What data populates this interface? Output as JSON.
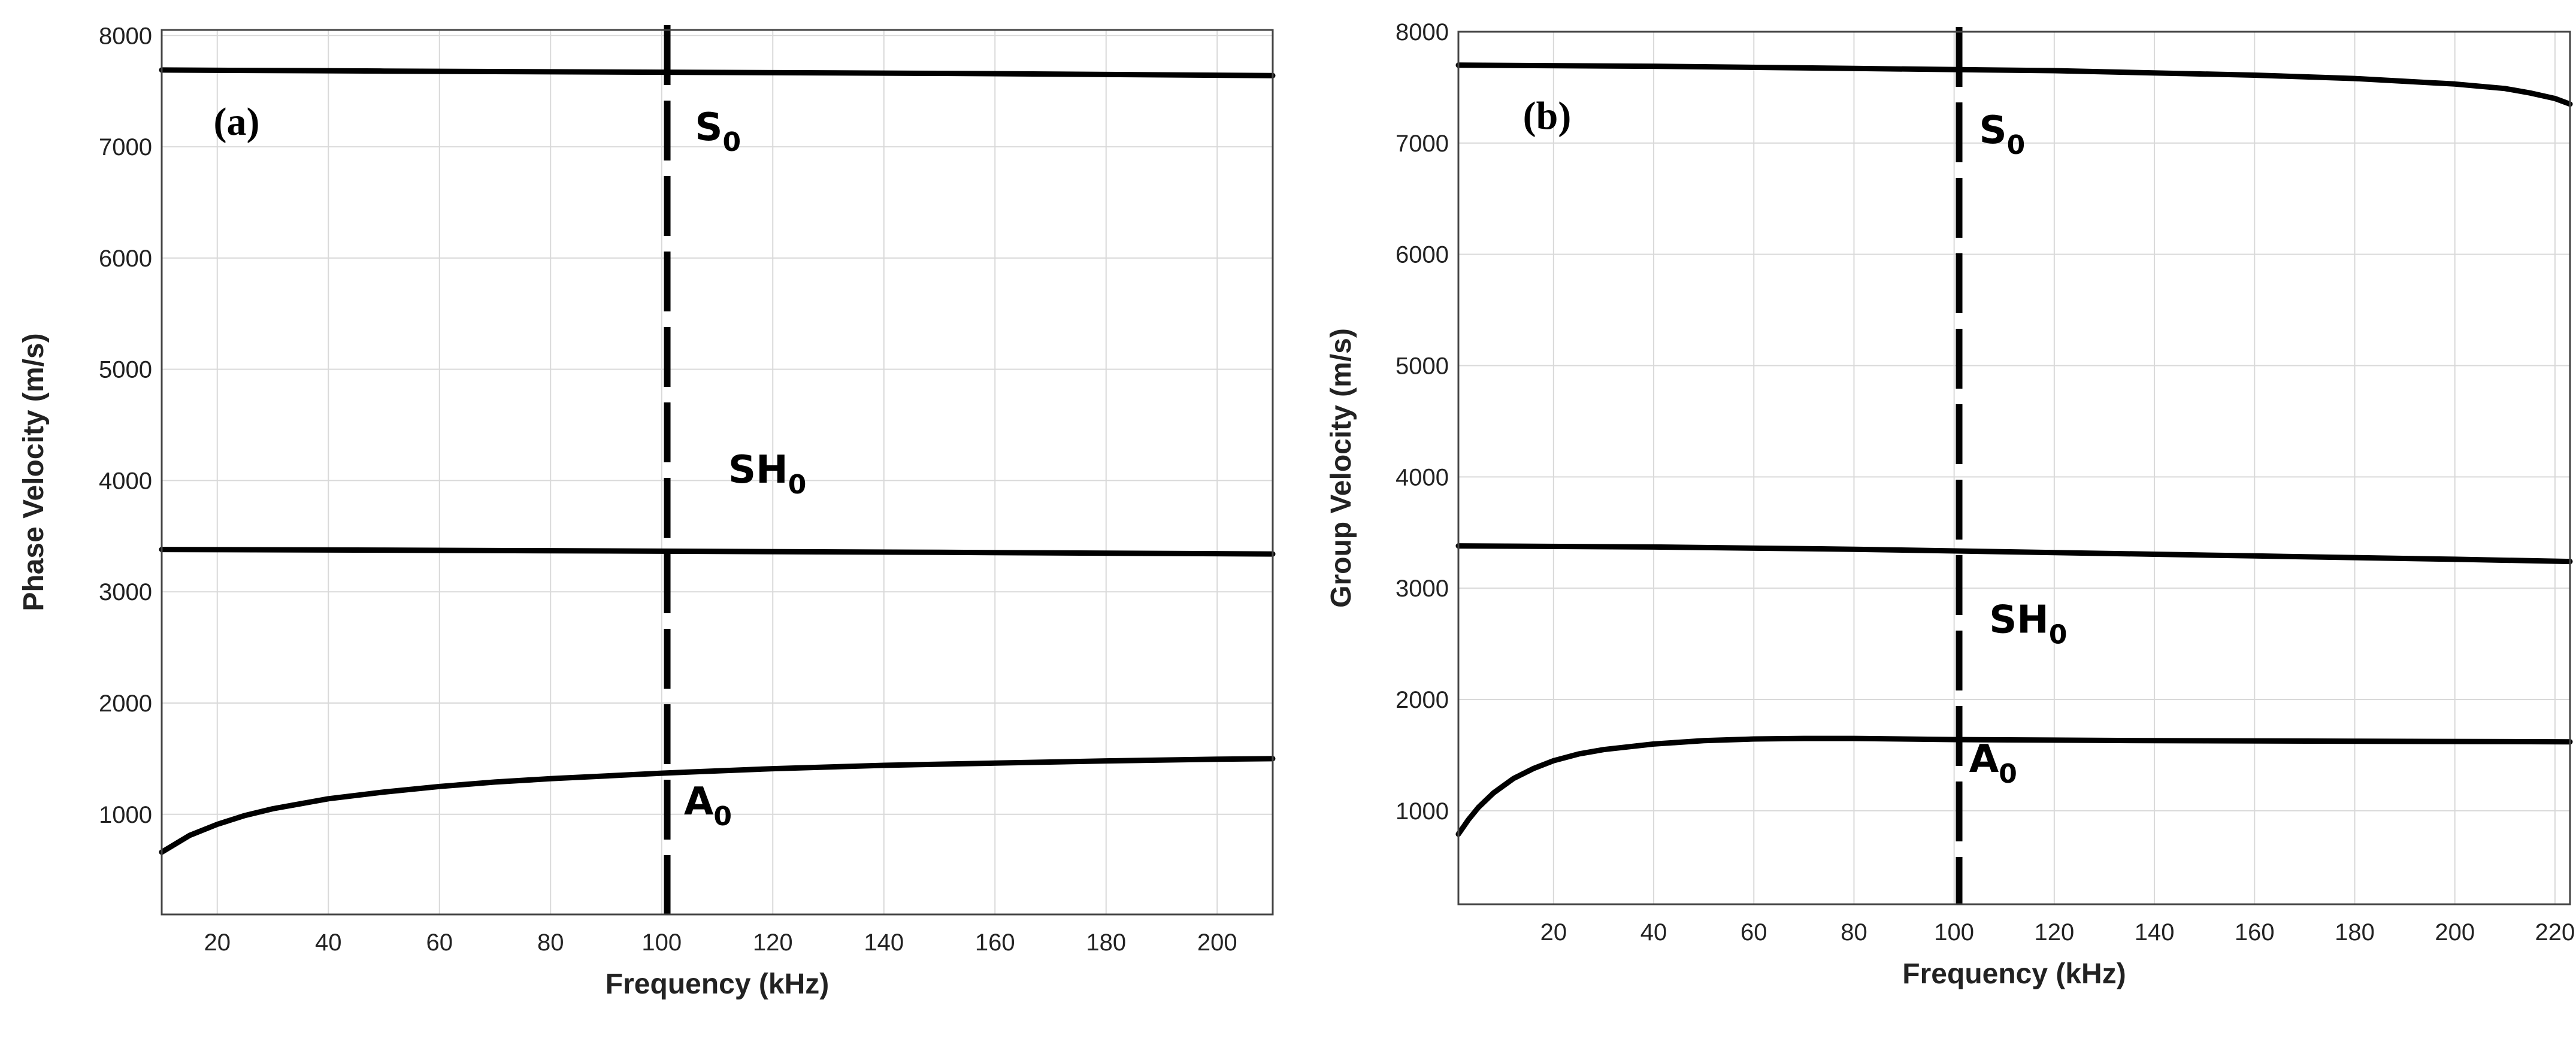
{
  "chart_data": [
    {
      "type": "line",
      "panel": "(a)",
      "xlabel": "Frequency (kHz)",
      "ylabel": "Phase Velocity (m/s)",
      "xlim": [
        10,
        210
      ],
      "ylim": [
        100,
        8050
      ],
      "xticks": [
        20,
        40,
        60,
        80,
        100,
        120,
        140,
        160,
        180,
        200
      ],
      "yticks": [
        1000,
        2000,
        3000,
        4000,
        5000,
        6000,
        7000,
        8000
      ],
      "grid": true,
      "series": [
        {
          "name": "S0",
          "x": [
            10,
            50,
            100,
            150,
            210
          ],
          "y": [
            7690,
            7680,
            7670,
            7660,
            7640
          ]
        },
        {
          "name": "SH0",
          "x": [
            10,
            50,
            100,
            150,
            210
          ],
          "y": [
            3380,
            3375,
            3365,
            3355,
            3340
          ]
        },
        {
          "name": "A0",
          "x": [
            10,
            15,
            20,
            25,
            30,
            40,
            50,
            60,
            70,
            80,
            90,
            100,
            120,
            140,
            160,
            180,
            200,
            210
          ],
          "y": [
            660,
            810,
            910,
            990,
            1050,
            1140,
            1200,
            1250,
            1290,
            1320,
            1345,
            1370,
            1410,
            1440,
            1460,
            1480,
            1495,
            1500
          ]
        }
      ],
      "marker": {
        "x": 101,
        "style": "dashed"
      },
      "annotations": [
        {
          "id": "s0",
          "text": "S",
          "sub": "0",
          "x": 106,
          "y": 7060
        },
        {
          "id": "sh0",
          "text": "SH",
          "sub": "0",
          "x": 112,
          "y": 3980
        },
        {
          "id": "a0",
          "text": "A",
          "sub": "0",
          "x": 104,
          "y": 1000
        }
      ]
    },
    {
      "type": "line",
      "panel": "(b)",
      "xlabel": "Frequency (kHz)",
      "ylabel": "Group Velocity (m/s)",
      "xlim": [
        1,
        223
      ],
      "ylim": [
        160,
        8000
      ],
      "xticks": [
        20,
        40,
        60,
        80,
        100,
        120,
        140,
        160,
        180,
        200,
        220
      ],
      "yticks": [
        1000,
        2000,
        3000,
        4000,
        5000,
        6000,
        7000,
        8000
      ],
      "grid": true,
      "series": [
        {
          "name": "S0",
          "x": [
            1,
            40,
            80,
            120,
            160,
            180,
            200,
            210,
            215,
            220,
            223
          ],
          "y": [
            7700,
            7690,
            7670,
            7650,
            7610,
            7580,
            7530,
            7490,
            7450,
            7400,
            7350
          ]
        },
        {
          "name": "SH0",
          "x": [
            1,
            40,
            80,
            120,
            160,
            200,
            223
          ],
          "y": [
            3380,
            3370,
            3350,
            3320,
            3290,
            3260,
            3240
          ]
        },
        {
          "name": "A0",
          "x": [
            1,
            3,
            5,
            8,
            12,
            16,
            20,
            25,
            30,
            40,
            50,
            60,
            70,
            80,
            100,
            140,
            180,
            223
          ],
          "y": [
            790,
            920,
            1030,
            1160,
            1290,
            1380,
            1450,
            1510,
            1550,
            1600,
            1630,
            1645,
            1650,
            1650,
            1640,
            1630,
            1625,
            1620
          ]
        }
      ],
      "marker": {
        "x": 101,
        "style": "dashed"
      },
      "annotations": [
        {
          "id": "s0",
          "text": "S",
          "sub": "0",
          "x": 105,
          "y": 7000
        },
        {
          "id": "sh0",
          "text": "SH",
          "sub": "0",
          "x": 107,
          "y": 2600
        },
        {
          "id": "a0",
          "text": "A",
          "sub": "0",
          "x": 103,
          "y": 1350
        }
      ]
    }
  ]
}
